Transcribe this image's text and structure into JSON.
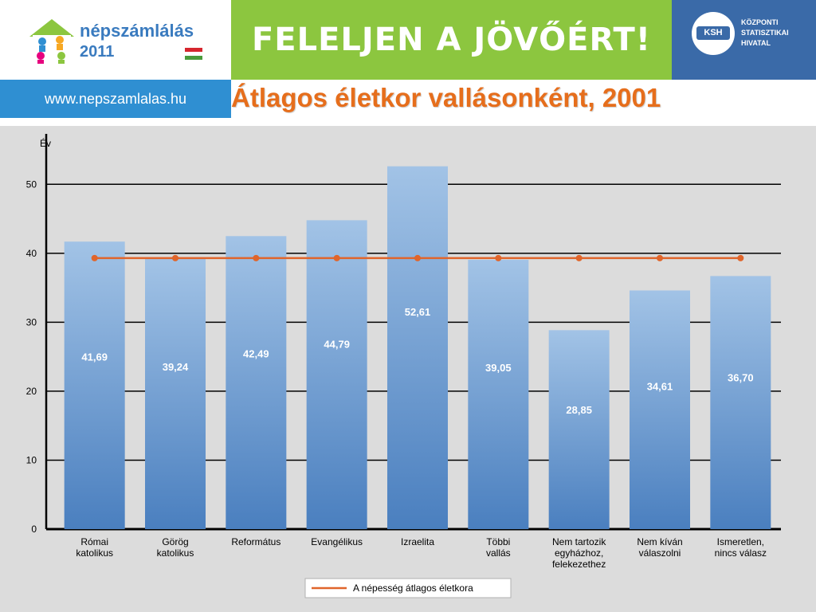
{
  "header": {
    "logo_line1": "népszámlálás",
    "logo_line2": "2011",
    "slogan": "FELELJEN A JÖVŐÉRT!",
    "ksh_short": "KSH",
    "ksh_name": [
      "KÖZPONTI",
      "STATISZTIKAI",
      "HIVATAL"
    ],
    "url": "www.nepszamlalas.hu"
  },
  "colors": {
    "slogan_bg": "#8cc63f",
    "ksh_bg": "#3a6aa8",
    "url_bg": "#2f8fd2",
    "title": "#e66e1c",
    "bar_top": "#a2c3e6",
    "bar_bottom": "#4a7fbf",
    "line": "#e0652b"
  },
  "chart_data": {
    "type": "bar",
    "title": "Átlagos életkor vallásonként, 2001",
    "ylabel": "Év",
    "ylim": [
      0,
      55
    ],
    "yticks": [
      0,
      10,
      20,
      30,
      40,
      50
    ],
    "categories": [
      [
        "Római",
        "katolikus"
      ],
      [
        "Görög",
        "katolikus"
      ],
      [
        "Református"
      ],
      [
        "Evangélikus"
      ],
      [
        "Izraelita"
      ],
      [
        "Többi",
        "vallás"
      ],
      [
        "Nem tartozik",
        "egyházhoz,",
        "felekezethez"
      ],
      [
        "Nem kíván",
        "válaszolni"
      ],
      [
        "Ismeretlen,",
        "nincs válasz"
      ]
    ],
    "values": [
      41.69,
      39.24,
      42.49,
      44.79,
      52.61,
      39.05,
      28.85,
      34.61,
      36.7
    ],
    "value_labels": [
      "41,69",
      "39,24",
      "42,49",
      "44,79",
      "52,61",
      "39,05",
      "28,85",
      "34,61",
      "36,70"
    ],
    "reference_line": {
      "name": "A népesség átlagos életkora",
      "value": 39.3
    },
    "grid": true,
    "legend": "bottom-center"
  }
}
